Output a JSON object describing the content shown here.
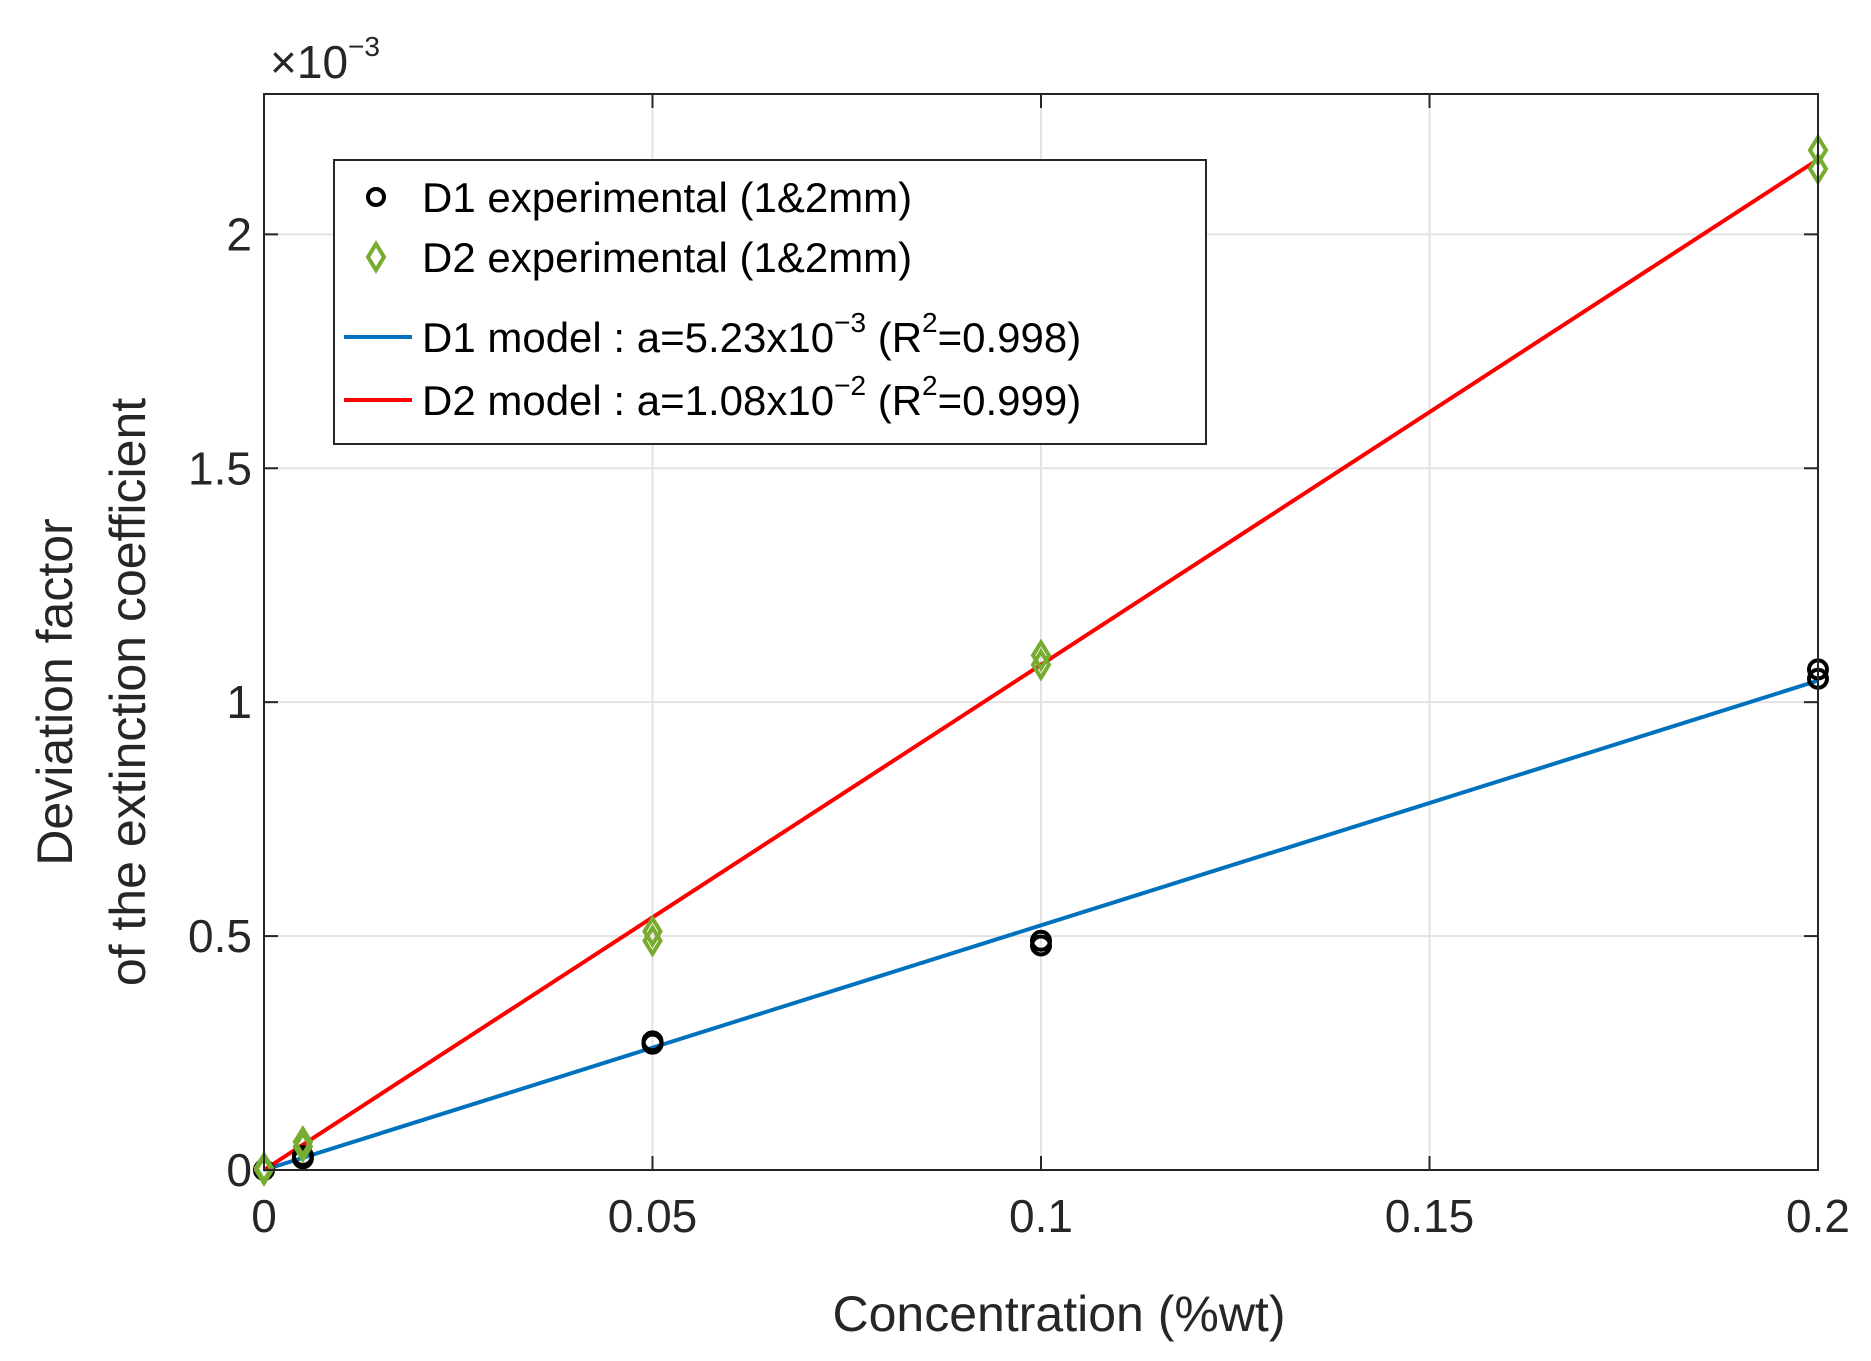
{
  "chart_data": {
    "type": "scatter",
    "xlabel": "Concentration (%wt)",
    "ylabel_line1": "Deviation factor",
    "ylabel_line2": "of the extinction coefficient",
    "y_multiplier": {
      "base": "×10",
      "exponent": "−3"
    },
    "xlim": [
      0,
      0.2
    ],
    "ylim": [
      0,
      2.3
    ],
    "xticks": [
      0,
      0.05,
      0.1,
      0.15,
      0.2
    ],
    "xtick_labels": [
      "0",
      "0.05",
      "0.1",
      "0.15",
      "0.2"
    ],
    "yticks": [
      0,
      0.5,
      1,
      1.5,
      2
    ],
    "ytick_labels": [
      "0",
      "0.5",
      "1",
      "1.5",
      "2"
    ],
    "grid": true,
    "legend_position": "top-left",
    "series": [
      {
        "name": "D1 experimental (1&2mm)",
        "kind": "marker",
        "marker": "circle",
        "color": "#000000",
        "points": [
          [
            0,
            0.0
          ],
          [
            0.005,
            0.025
          ],
          [
            0.005,
            0.03
          ],
          [
            0.05,
            0.27
          ],
          [
            0.05,
            0.275
          ],
          [
            0.1,
            0.48
          ],
          [
            0.1,
            0.49
          ],
          [
            0.2,
            1.05
          ],
          [
            0.2,
            1.07
          ]
        ]
      },
      {
        "name": "D2 experimental (1&2mm)",
        "kind": "marker",
        "marker": "diamond",
        "color": "#77AC30",
        "points": [
          [
            0,
            0.0
          ],
          [
            0,
            0.005
          ],
          [
            0.005,
            0.05
          ],
          [
            0.005,
            0.06
          ],
          [
            0.05,
            0.49
          ],
          [
            0.05,
            0.51
          ],
          [
            0.1,
            1.08
          ],
          [
            0.1,
            1.1
          ],
          [
            0.2,
            2.14
          ],
          [
            0.2,
            2.18
          ]
        ]
      },
      {
        "name_prefix": "D1 model : a=5.23x10",
        "name_exp": "−3",
        "name_mid": " (R",
        "name_exp2": "2",
        "name_suffix": "=0.998)",
        "kind": "line",
        "color": "#0072BD",
        "slope": 0.00523,
        "x": [
          0,
          0.2
        ],
        "y": [
          0,
          1.046
        ]
      },
      {
        "name_prefix": "D2 model : a=1.08x10",
        "name_exp": "−2",
        "name_mid": " (R",
        "name_exp2": "2",
        "name_suffix": "=0.999)",
        "kind": "line",
        "color": "#FF0000",
        "slope": 0.0108,
        "x": [
          0,
          0.2
        ],
        "y": [
          0,
          2.16
        ]
      }
    ]
  }
}
